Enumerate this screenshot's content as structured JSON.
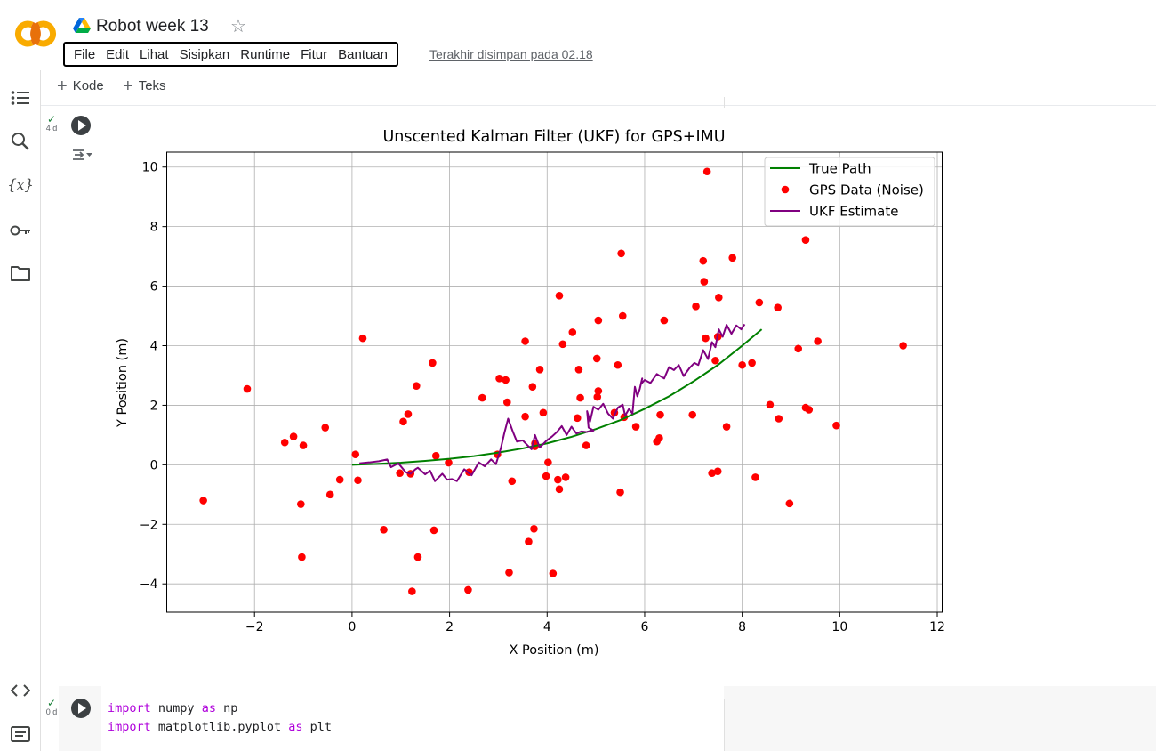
{
  "header": {
    "doc_title": "Robot week 13",
    "menu": [
      "File",
      "Edit",
      "Lihat",
      "Sisipkan",
      "Runtime",
      "Fitur",
      "Bantuan"
    ],
    "last_saved": "Terakhir disimpan pada 02.18",
    "logo": "colab-logo",
    "drive_icon": "google-drive-icon",
    "star_icon": "star-outline-icon"
  },
  "toolbar": {
    "add_code_label": "Kode",
    "add_text_label": "Teks"
  },
  "left_rail": {
    "icons": [
      "table-of-contents-icon",
      "search-icon",
      "variables-icon",
      "secrets-key-icon",
      "files-folder-icon",
      "code-snippets-icon",
      "terminal-icon"
    ]
  },
  "cells": [
    {
      "exec_label": "4 d",
      "status": "success"
    },
    {
      "exec_label": "0 d",
      "status": "success"
    }
  ],
  "code_cell": {
    "lines": [
      {
        "kw1": "import",
        "mod": "numpy",
        "kw2": "as",
        "alias": "np"
      },
      {
        "kw1": "import",
        "mod": "matplotlib.pyplot",
        "kw2": "as",
        "alias": "plt"
      }
    ]
  },
  "colors": {
    "true_path": "#008000",
    "gps": "#ff0000",
    "ukf": "#800080",
    "accent_check": "#188038"
  },
  "chart_data": {
    "type": "scatter",
    "title": "Unscented Kalman Filter (UKF) for GPS+IMU",
    "xlabel": "X Position (m)",
    "ylabel": "Y Position (m)",
    "xlim": [
      -3.8,
      12.1
    ],
    "ylim": [
      -4.95,
      10.5
    ],
    "xticks": [
      -2,
      0,
      2,
      4,
      6,
      8,
      10,
      12
    ],
    "yticks": [
      -4,
      -2,
      0,
      2,
      4,
      6,
      8,
      10
    ],
    "grid": true,
    "legend_position": "top-right",
    "series": [
      {
        "name": "True Path",
        "type": "line",
        "x": [
          0,
          0.5,
          1,
          1.5,
          2,
          2.5,
          3,
          3.5,
          4,
          4.5,
          5,
          5.5,
          6,
          6.5,
          7,
          7.5,
          8,
          8.4
        ],
        "y": [
          0,
          0.03,
          0.07,
          0.13,
          0.2,
          0.29,
          0.41,
          0.55,
          0.72,
          0.94,
          1.2,
          1.5,
          1.88,
          2.3,
          2.8,
          3.35,
          4.0,
          4.55
        ]
      },
      {
        "name": "GPS Data (Noise)",
        "type": "scatter",
        "x": [
          -3.05,
          -2.15,
          -1.38,
          -1.2,
          -1.05,
          -1.0,
          -1.03,
          -0.55,
          -0.45,
          -0.25,
          0.07,
          0.12,
          0.22,
          0.65,
          0.98,
          1.05,
          1.15,
          1.2,
          1.23,
          1.32,
          1.35,
          1.65,
          1.68,
          1.72,
          1.98,
          2.38,
          2.4,
          2.67,
          2.98,
          3.02,
          3.15,
          3.18,
          3.22,
          3.28,
          3.55,
          3.55,
          3.62,
          3.7,
          3.73,
          3.75,
          3.75,
          3.85,
          3.92,
          3.98,
          4.02,
          4.12,
          4.22,
          4.25,
          4.25,
          4.32,
          4.38,
          4.52,
          4.62,
          4.65,
          4.68,
          4.8,
          5.02,
          5.03,
          5.05,
          5.05,
          5.38,
          5.45,
          5.5,
          5.52,
          5.55,
          5.58,
          5.82,
          6.25,
          6.3,
          6.32,
          6.4,
          6.98,
          7.05,
          7.2,
          7.22,
          7.25,
          7.28,
          7.38,
          7.45,
          7.5,
          7.5,
          7.52,
          7.68,
          7.8,
          8.0,
          8.2,
          8.27,
          8.35,
          8.57,
          8.73,
          8.75,
          8.97,
          9.15,
          9.3,
          9.3,
          9.37,
          9.55,
          9.93,
          11.3
        ],
        "y": [
          -1.2,
          2.55,
          0.75,
          0.95,
          -1.32,
          0.65,
          -3.1,
          1.25,
          -1.0,
          -0.5,
          0.35,
          -0.52,
          4.25,
          -2.18,
          -0.28,
          1.45,
          1.7,
          -0.3,
          -4.25,
          2.65,
          -3.1,
          3.42,
          -2.2,
          0.3,
          0.07,
          -4.2,
          -0.25,
          2.25,
          0.35,
          2.9,
          2.85,
          2.1,
          -3.62,
          -0.55,
          4.15,
          1.62,
          -2.58,
          2.62,
          -2.15,
          0.62,
          0.72,
          3.2,
          1.75,
          -0.38,
          0.08,
          -3.65,
          -0.5,
          5.68,
          -0.82,
          4.05,
          -0.42,
          4.45,
          1.57,
          3.2,
          2.25,
          0.65,
          3.57,
          2.28,
          4.85,
          2.48,
          1.75,
          3.35,
          -0.92,
          7.1,
          5.0,
          1.6,
          1.28,
          0.78,
          0.9,
          1.68,
          4.85,
          1.68,
          5.32,
          6.85,
          6.15,
          4.25,
          9.85,
          -0.28,
          3.5,
          4.3,
          -0.22,
          5.62,
          1.28,
          6.95,
          3.35,
          3.42,
          -0.42,
          5.45,
          2.02,
          5.28,
          1.55,
          -1.3,
          3.9,
          7.55,
          1.92,
          1.85,
          4.15,
          1.32,
          4.0
        ]
      },
      {
        "name": "UKF Estimate",
        "type": "line",
        "x": [
          0.15,
          0.35,
          0.55,
          0.72,
          0.8,
          0.95,
          1.1,
          1.2,
          1.3,
          1.35,
          1.5,
          1.6,
          1.7,
          1.85,
          1.95,
          2.05,
          2.15,
          2.3,
          2.45,
          2.6,
          2.72,
          2.85,
          2.95,
          3.05,
          3.12,
          3.2,
          3.3,
          3.38,
          3.5,
          3.6,
          3.68,
          3.75,
          3.85,
          3.98,
          4.1,
          4.2,
          4.3,
          4.4,
          4.5,
          4.6,
          4.7,
          4.8,
          4.95,
          4.85,
          4.82,
          4.88,
          4.95,
          5.05,
          5.15,
          5.25,
          5.35,
          5.45,
          5.55,
          5.6,
          5.68,
          5.75,
          5.8,
          5.85,
          5.9,
          5.95,
          5.92,
          6.0,
          6.12,
          6.25,
          6.4,
          6.5,
          6.6,
          6.7,
          6.8,
          6.92,
          7.02,
          7.1,
          7.2,
          7.3,
          7.38,
          7.45,
          7.52,
          7.6,
          7.68,
          7.78,
          7.88,
          7.98,
          8.05
        ],
        "y": [
          0.05,
          0.08,
          0.12,
          0.18,
          -0.08,
          0.05,
          -0.25,
          -0.3,
          -0.15,
          -0.1,
          -0.32,
          -0.2,
          -0.55,
          -0.3,
          -0.5,
          -0.48,
          -0.55,
          -0.15,
          -0.35,
          0.08,
          -0.05,
          0.18,
          0.02,
          0.55,
          1.05,
          1.55,
          1.1,
          0.78,
          0.82,
          0.65,
          0.52,
          1.0,
          0.58,
          0.8,
          0.95,
          1.1,
          1.3,
          1.0,
          1.28,
          1.05,
          1.12,
          1.1,
          1.15,
          1.25,
          1.8,
          1.45,
          1.95,
          1.85,
          2.05,
          1.72,
          1.55,
          1.92,
          2.02,
          1.65,
          1.88,
          1.72,
          2.62,
          2.3,
          2.55,
          2.9,
          2.7,
          2.85,
          2.75,
          3.05,
          2.9,
          3.28,
          3.18,
          3.35,
          2.98,
          3.25,
          3.42,
          3.35,
          3.85,
          3.55,
          4.12,
          3.95,
          4.55,
          4.3,
          4.7,
          4.4,
          4.68,
          4.55,
          4.72
        ]
      }
    ]
  }
}
